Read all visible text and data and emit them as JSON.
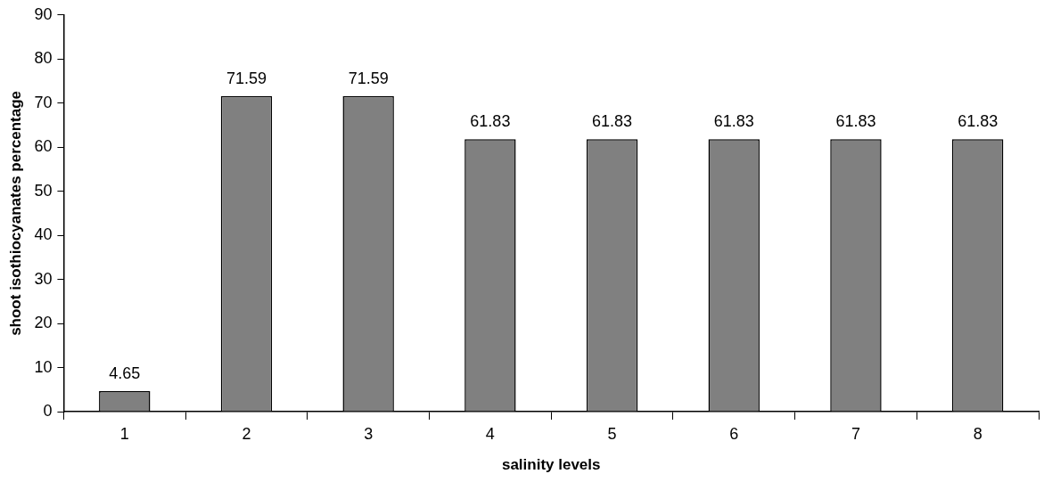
{
  "chart_data": {
    "type": "bar",
    "xlabel": "salinity levels",
    "ylabel": "shoot isothiocyanates percentage",
    "categories": [
      "1",
      "2",
      "3",
      "4",
      "5",
      "6",
      "7",
      "8"
    ],
    "values": [
      4.65,
      71.59,
      71.59,
      61.83,
      61.83,
      61.83,
      61.83,
      61.83
    ],
    "color": "#808080",
    "ylim": [
      0,
      90
    ],
    "yticks": [
      0,
      10,
      20,
      30,
      40,
      50,
      60,
      70,
      80,
      90
    ],
    "grid": false,
    "legend": false,
    "data_labels": true
  }
}
